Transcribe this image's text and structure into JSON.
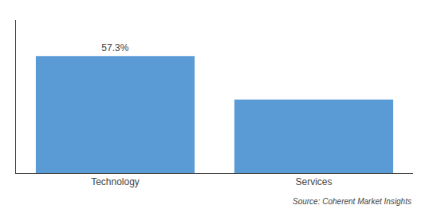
{
  "chart_data": {
    "type": "bar",
    "categories": [
      "Technology",
      "Services"
    ],
    "values": [
      57.3,
      36.0
    ],
    "value_labels": [
      "57.3%",
      null
    ],
    "color": "#5B9BD5",
    "ylim": [
      0,
      75
    ],
    "yticks": [],
    "tick_labels": "x",
    "grid": false,
    "annotations": [
      "Source: Coherent Market Insights"
    ]
  }
}
